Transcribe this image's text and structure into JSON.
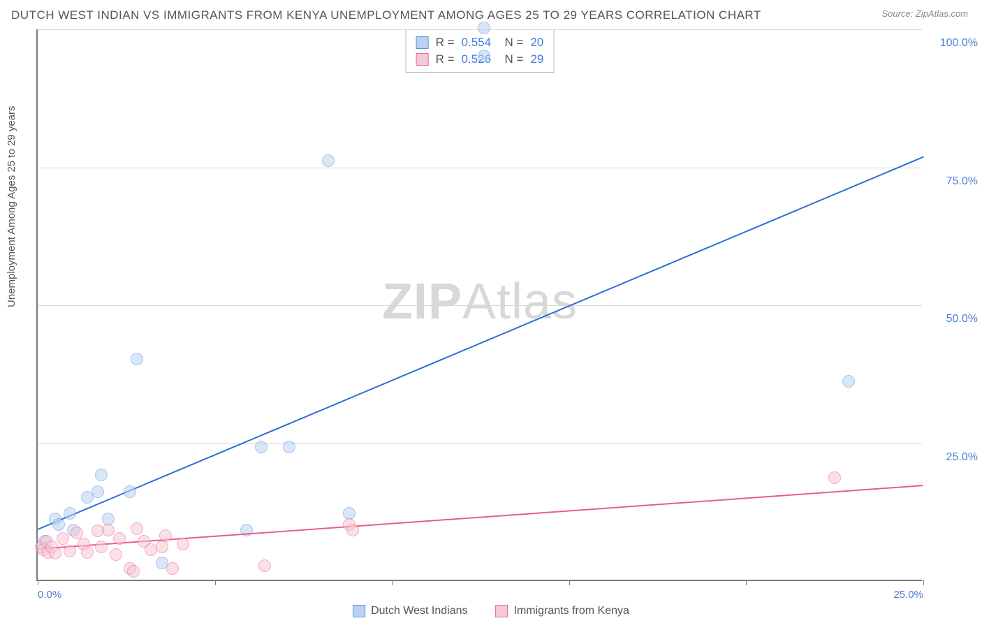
{
  "title": "DUTCH WEST INDIAN VS IMMIGRANTS FROM KENYA UNEMPLOYMENT AMONG AGES 25 TO 29 YEARS CORRELATION CHART",
  "source": "Source: ZipAtlas.com",
  "y_axis_label": "Unemployment Among Ages 25 to 29 years",
  "watermark": {
    "bold": "ZIP",
    "rest": "Atlas"
  },
  "chart": {
    "type": "scatter",
    "xlim": [
      0,
      25
    ],
    "ylim": [
      0,
      100
    ],
    "x_ticks": [
      0,
      5,
      10,
      15,
      20,
      25
    ],
    "x_tick_labels": {
      "0": "0.0%",
      "25": "25.0%"
    },
    "y_gridlines": [
      25,
      50,
      75,
      100
    ],
    "y_tick_labels": [
      "25.0%",
      "50.0%",
      "75.0%",
      "100.0%"
    ],
    "background_color": "#ffffff",
    "grid_color": "#d8d8d8",
    "axis_color": "#7a7a7a",
    "tick_label_color": "#4a7fd6",
    "marker_radius": 9,
    "marker_opacity": 0.55
  },
  "series": [
    {
      "name": "Dutch West Indians",
      "fill": "#b9d2f1",
      "stroke": "#5f95df",
      "trend_color": "#2e6fd6",
      "trend_start": [
        0,
        9.5
      ],
      "trend_end": [
        25,
        77
      ],
      "R": "0.554",
      "N": "20",
      "points": [
        [
          0.2,
          7
        ],
        [
          0.5,
          11
        ],
        [
          0.6,
          10
        ],
        [
          0.9,
          12
        ],
        [
          1.0,
          9
        ],
        [
          1.4,
          15
        ],
        [
          1.8,
          19
        ],
        [
          1.7,
          16
        ],
        [
          2.0,
          11
        ],
        [
          2.6,
          16
        ],
        [
          2.8,
          40
        ],
        [
          3.5,
          3
        ],
        [
          5.9,
          9
        ],
        [
          6.3,
          24
        ],
        [
          7.1,
          24
        ],
        [
          8.2,
          76
        ],
        [
          8.8,
          12
        ],
        [
          12.6,
          100
        ],
        [
          12.6,
          95
        ],
        [
          22.9,
          36
        ]
      ]
    },
    {
      "name": "Immigrants from Kenya",
      "fill": "#f6c7d4",
      "stroke": "#ea6a93",
      "trend_color": "#ea5d8b",
      "trend_start": [
        0,
        6
      ],
      "trend_end": [
        25,
        17.5
      ],
      "R": "0.526",
      "N": "29",
      "points": [
        [
          0.1,
          6
        ],
        [
          0.15,
          5.5
        ],
        [
          0.25,
          7
        ],
        [
          0.3,
          5
        ],
        [
          0.4,
          6
        ],
        [
          0.5,
          4.8
        ],
        [
          0.7,
          7.5
        ],
        [
          0.9,
          5.2
        ],
        [
          1.1,
          8.5
        ],
        [
          1.3,
          6.5
        ],
        [
          1.4,
          5
        ],
        [
          1.7,
          8.8
        ],
        [
          1.8,
          6
        ],
        [
          2.0,
          9
        ],
        [
          2.2,
          4.5
        ],
        [
          2.3,
          7.5
        ],
        [
          2.6,
          2
        ],
        [
          2.7,
          1.5
        ],
        [
          2.8,
          9.2
        ],
        [
          3.0,
          7
        ],
        [
          3.2,
          5.5
        ],
        [
          3.5,
          6
        ],
        [
          3.6,
          8
        ],
        [
          3.8,
          2
        ],
        [
          4.1,
          6.5
        ],
        [
          6.4,
          2.5
        ],
        [
          8.8,
          10
        ],
        [
          8.9,
          9
        ],
        [
          22.5,
          18.5
        ]
      ]
    }
  ],
  "legend": {
    "items": [
      {
        "label": "Dutch West Indians",
        "fill": "#b9d2f1",
        "stroke": "#5f95df"
      },
      {
        "label": "Immigrants from Kenya",
        "fill": "#f6c7d4",
        "stroke": "#ea6a93"
      }
    ]
  }
}
